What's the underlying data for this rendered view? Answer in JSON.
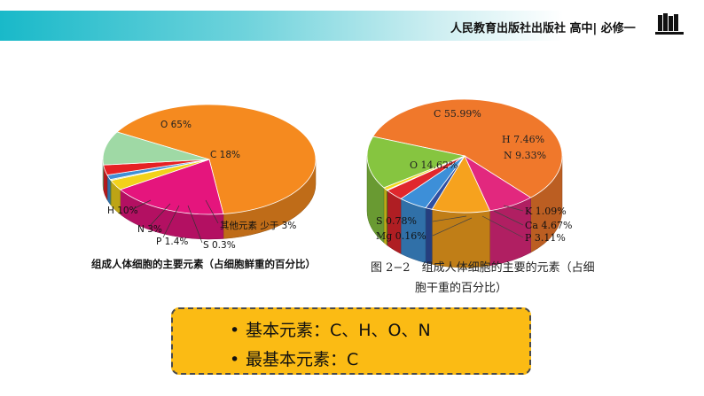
{
  "header": {
    "title": "人民教育出版社出版社 高中| 必修一",
    "accent_color": "#19b9c9",
    "icon": "books-icon"
  },
  "chart_data": [
    {
      "type": "pie",
      "caption": "组成人体细胞的主要元素（占细胞鲜重的百分比）",
      "slices": [
        {
          "label": "O 65%",
          "value": 65,
          "color": "#f58a1f"
        },
        {
          "label": "C 18%",
          "value": 18,
          "color": "#e5157d"
        },
        {
          "label": "其他元素 少于 3%",
          "value": 3,
          "color": "#f2d21b"
        },
        {
          "label": "S 0.3%",
          "value": 0.3,
          "color": "#a8d24a"
        },
        {
          "label": "P 1.4%",
          "value": 1.4,
          "color": "#3f8fd6"
        },
        {
          "label": "N 3%",
          "value": 3,
          "color": "#e62124"
        },
        {
          "label": "H 10%",
          "value": 10,
          "color": "#9fd9a5"
        }
      ]
    },
    {
      "type": "pie",
      "caption_line1": "图 2−2　组成人体细胞的主要的元素（占细",
      "caption_line2": "胞干重的百分比）",
      "slices": [
        {
          "label": "C 55.99%",
          "value": 55.99,
          "color": "#f0782b"
        },
        {
          "label": "H 7.46%",
          "value": 7.46,
          "color": "#e2287e"
        },
        {
          "label": "N 9.33%",
          "value": 9.33,
          "color": "#f6a21e"
        },
        {
          "label": "K 1.09%",
          "value": 1.09,
          "color": "#2f4fa2"
        },
        {
          "label": "Ca 4.67%",
          "value": 4.67,
          "color": "#3d8fd8"
        },
        {
          "label": "P 3.11%",
          "value": 3.11,
          "color": "#e0272d"
        },
        {
          "label": "Mg 0.16%",
          "value": 0.16,
          "color": "#3b8b3b"
        },
        {
          "label": "S 0.78%",
          "value": 0.78,
          "color": "#f2d81c"
        },
        {
          "label": "O 14.62%",
          "value": 14.62,
          "color": "#86c540"
        }
      ]
    }
  ],
  "summary": {
    "line1": "基本元素：C、H、O、N",
    "line2": "最基本元素：C",
    "bullet": "•",
    "fill_color": "#fbbb14"
  }
}
